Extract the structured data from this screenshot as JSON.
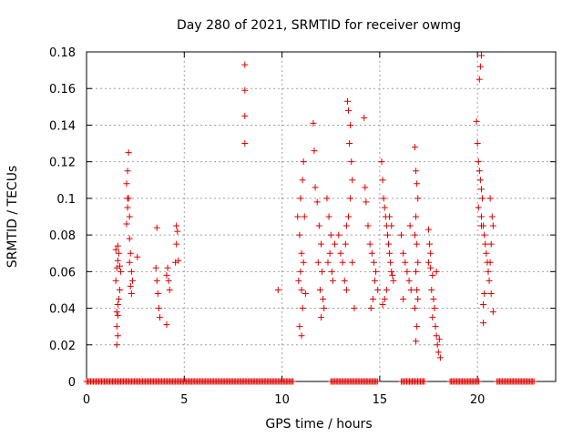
{
  "chart_data": {
    "type": "scatter",
    "title": "Day 280 of 2021, SRMTID for receiver owmg",
    "xlabel": "GPS time / hours",
    "ylabel": "SRMTID / TECUs",
    "xlim": [
      0,
      24
    ],
    "ylim": [
      0,
      0.18
    ],
    "xticks": [
      0,
      5,
      10,
      15,
      20
    ],
    "xtick_labels": [
      "0",
      "5",
      "10",
      "15",
      "20"
    ],
    "yticks": [
      0,
      0.02,
      0.04,
      0.06,
      0.08,
      0.1,
      0.12,
      0.14,
      0.16,
      0.18
    ],
    "ytick_labels": [
      "0",
      "0.02",
      "0.04",
      "0.06",
      "0.08",
      "0.1",
      "0.12",
      "0.14",
      "0.16",
      "0.18"
    ],
    "grid": true,
    "marker": "+",
    "color": "#dd0000",
    "series": [
      {
        "name": "SRMTID",
        "points": [
          [
            1.55,
            0.02
          ],
          [
            1.55,
            0.03
          ],
          [
            1.6,
            0.036
          ],
          [
            1.6,
            0.042
          ],
          [
            1.65,
            0.045
          ],
          [
            1.5,
            0.055
          ],
          [
            1.55,
            0.062
          ],
          [
            1.6,
            0.066
          ],
          [
            1.65,
            0.07
          ],
          [
            1.5,
            0.072
          ],
          [
            1.6,
            0.074
          ],
          [
            1.7,
            0.063
          ],
          [
            1.75,
            0.06
          ],
          [
            1.7,
            0.05
          ],
          [
            1.55,
            0.038
          ],
          [
            1.6,
            0.025
          ],
          [
            2.05,
            0.086
          ],
          [
            2.1,
            0.095
          ],
          [
            2.15,
            0.1
          ],
          [
            2.05,
            0.108
          ],
          [
            2.1,
            0.115
          ],
          [
            2.15,
            0.125
          ],
          [
            2.2,
            0.078
          ],
          [
            2.25,
            0.07
          ],
          [
            2.2,
            0.065
          ],
          [
            2.3,
            0.06
          ],
          [
            2.25,
            0.052
          ],
          [
            2.3,
            0.048
          ],
          [
            2.35,
            0.055
          ],
          [
            2.6,
            0.068
          ],
          [
            2.2,
            0.09
          ],
          [
            2.1,
            0.1
          ],
          [
            3.6,
            0.084
          ],
          [
            3.55,
            0.062
          ],
          [
            3.6,
            0.055
          ],
          [
            3.65,
            0.048
          ],
          [
            3.7,
            0.04
          ],
          [
            3.75,
            0.035
          ],
          [
            4.1,
            0.058
          ],
          [
            4.15,
            0.062
          ],
          [
            4.2,
            0.055
          ],
          [
            4.25,
            0.05
          ],
          [
            4.1,
            0.031
          ],
          [
            4.6,
            0.085
          ],
          [
            4.65,
            0.082
          ],
          [
            4.6,
            0.075
          ],
          [
            4.7,
            0.066
          ],
          [
            4.55,
            0.065
          ],
          [
            8.1,
            0.173
          ],
          [
            8.1,
            0.159
          ],
          [
            8.1,
            0.145
          ],
          [
            8.1,
            0.13
          ],
          [
            9.8,
            0.05
          ],
          [
            10.8,
            0.09
          ],
          [
            10.9,
            0.08
          ],
          [
            11.0,
            0.07
          ],
          [
            10.95,
            0.06
          ],
          [
            11.0,
            0.05
          ],
          [
            11.05,
            0.04
          ],
          [
            10.9,
            0.03
          ],
          [
            11.0,
            0.025
          ],
          [
            11.1,
            0.12
          ],
          [
            11.05,
            0.11
          ],
          [
            10.95,
            0.1
          ],
          [
            11.15,
            0.09
          ],
          [
            11.1,
            0.065
          ],
          [
            10.85,
            0.055
          ],
          [
            11.2,
            0.048
          ],
          [
            11.6,
            0.141
          ],
          [
            11.65,
            0.126
          ],
          [
            11.7,
            0.106
          ],
          [
            11.8,
            0.098
          ],
          [
            11.9,
            0.085
          ],
          [
            12.0,
            0.075
          ],
          [
            11.85,
            0.065
          ],
          [
            12.05,
            0.06
          ],
          [
            11.95,
            0.05
          ],
          [
            12.1,
            0.045
          ],
          [
            12.15,
            0.04
          ],
          [
            12.0,
            0.035
          ],
          [
            12.3,
            0.1
          ],
          [
            12.4,
            0.09
          ],
          [
            12.5,
            0.08
          ],
          [
            12.45,
            0.07
          ],
          [
            12.55,
            0.06
          ],
          [
            12.6,
            0.055
          ],
          [
            12.35,
            0.065
          ],
          [
            12.7,
            0.075
          ],
          [
            12.9,
            0.08
          ],
          [
            13.0,
            0.07
          ],
          [
            13.1,
            0.065
          ],
          [
            13.2,
            0.055
          ],
          [
            13.3,
            0.05
          ],
          [
            13.35,
            0.153
          ],
          [
            13.4,
            0.148
          ],
          [
            13.5,
            0.14
          ],
          [
            13.45,
            0.13
          ],
          [
            13.55,
            0.12
          ],
          [
            13.6,
            0.11
          ],
          [
            13.5,
            0.1
          ],
          [
            13.4,
            0.09
          ],
          [
            13.3,
            0.085
          ],
          [
            13.25,
            0.075
          ],
          [
            13.6,
            0.065
          ],
          [
            13.7,
            0.04
          ],
          [
            14.2,
            0.144
          ],
          [
            14.25,
            0.106
          ],
          [
            14.3,
            0.098
          ],
          [
            14.4,
            0.085
          ],
          [
            14.5,
            0.075
          ],
          [
            14.6,
            0.07
          ],
          [
            14.7,
            0.065
          ],
          [
            14.8,
            0.06
          ],
          [
            14.75,
            0.055
          ],
          [
            14.9,
            0.05
          ],
          [
            14.65,
            0.045
          ],
          [
            14.55,
            0.04
          ],
          [
            15.1,
            0.12
          ],
          [
            15.15,
            0.11
          ],
          [
            15.2,
            0.1
          ],
          [
            15.25,
            0.095
          ],
          [
            15.3,
            0.09
          ],
          [
            15.35,
            0.085
          ],
          [
            15.4,
            0.08
          ],
          [
            15.45,
            0.075
          ],
          [
            15.5,
            0.07
          ],
          [
            15.55,
            0.065
          ],
          [
            15.6,
            0.06
          ],
          [
            15.65,
            0.058
          ],
          [
            15.7,
            0.055
          ],
          [
            15.35,
            0.05
          ],
          [
            15.25,
            0.045
          ],
          [
            15.15,
            0.042
          ],
          [
            15.5,
            0.09
          ],
          [
            15.6,
            0.085
          ],
          [
            16.1,
            0.08
          ],
          [
            16.2,
            0.07
          ],
          [
            16.3,
            0.065
          ],
          [
            16.4,
            0.06
          ],
          [
            16.5,
            0.055
          ],
          [
            16.6,
            0.05
          ],
          [
            16.2,
            0.045
          ],
          [
            16.55,
            0.085
          ],
          [
            16.8,
            0.128
          ],
          [
            16.85,
            0.115
          ],
          [
            16.9,
            0.108
          ],
          [
            16.95,
            0.1
          ],
          [
            16.85,
            0.09
          ],
          [
            16.8,
            0.08
          ],
          [
            16.9,
            0.075
          ],
          [
            16.95,
            0.065
          ],
          [
            16.85,
            0.06
          ],
          [
            16.9,
            0.05
          ],
          [
            16.95,
            0.045
          ],
          [
            16.8,
            0.04
          ],
          [
            16.9,
            0.03
          ],
          [
            16.85,
            0.022
          ],
          [
            17.5,
            0.083
          ],
          [
            17.55,
            0.075
          ],
          [
            17.6,
            0.07
          ],
          [
            17.5,
            0.065
          ],
          [
            17.6,
            0.062
          ],
          [
            17.7,
            0.058
          ],
          [
            17.65,
            0.05
          ],
          [
            17.75,
            0.045
          ],
          [
            17.8,
            0.04
          ],
          [
            17.7,
            0.035
          ],
          [
            17.85,
            0.03
          ],
          [
            17.9,
            0.025
          ],
          [
            17.95,
            0.02
          ],
          [
            18.0,
            0.016
          ],
          [
            18.1,
            0.013
          ],
          [
            18.05,
            0.023
          ],
          [
            17.9,
            0.06
          ],
          [
            19.95,
            0.142
          ],
          [
            20.0,
            0.13
          ],
          [
            20.05,
            0.12
          ],
          [
            20.1,
            0.115
          ],
          [
            20.15,
            0.11
          ],
          [
            20.2,
            0.105
          ],
          [
            20.25,
            0.1
          ],
          [
            20.05,
            0.095
          ],
          [
            20.2,
            0.09
          ],
          [
            20.3,
            0.085
          ],
          [
            20.35,
            0.08
          ],
          [
            20.4,
            0.075
          ],
          [
            20.45,
            0.07
          ],
          [
            20.5,
            0.065
          ],
          [
            20.55,
            0.06
          ],
          [
            20.6,
            0.055
          ],
          [
            20.35,
            0.048
          ],
          [
            20.3,
            0.042
          ],
          [
            20.3,
            0.032
          ],
          [
            20.1,
            0.165
          ],
          [
            20.15,
            0.172
          ],
          [
            20.2,
            0.178
          ],
          [
            20.65,
            0.1
          ],
          [
            20.75,
            0.09
          ],
          [
            20.8,
            0.085
          ],
          [
            20.7,
            0.075
          ],
          [
            20.65,
            0.065
          ],
          [
            20.7,
            0.048
          ],
          [
            20.8,
            0.038
          ],
          [
            20.2,
            0.085
          ]
        ]
      }
    ],
    "zero_line_segments_hours": [
      [
        0,
        10.6
      ],
      [
        12.5,
        14.9
      ],
      [
        16.1,
        17.3
      ],
      [
        18.6,
        20.1
      ],
      [
        21.0,
        22.9
      ]
    ]
  }
}
